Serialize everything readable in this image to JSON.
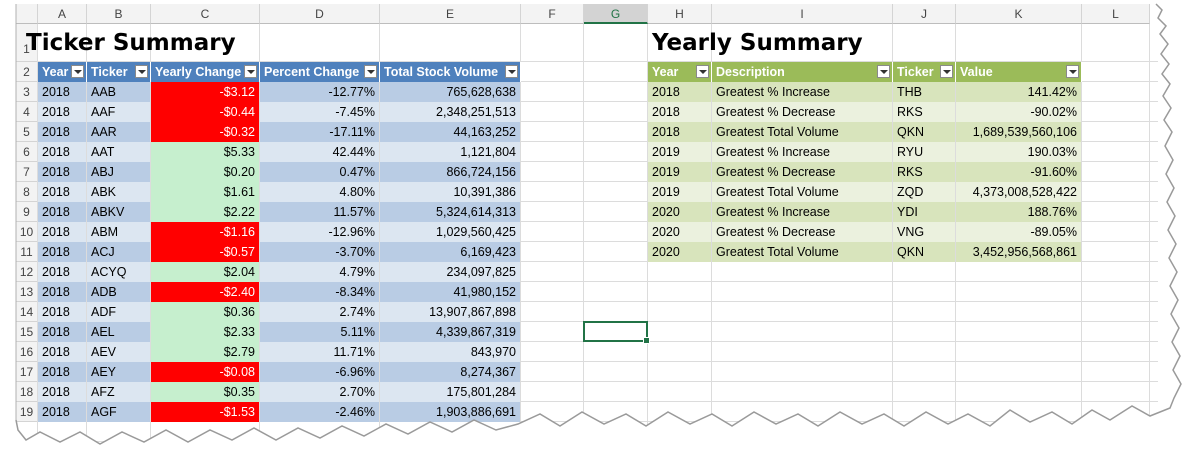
{
  "column_headers": [
    "A",
    "B",
    "C",
    "D",
    "E",
    "F",
    "G",
    "H",
    "I",
    "J",
    "K",
    "L"
  ],
  "row_numbers": [
    "1",
    "2",
    "3",
    "4",
    "5",
    "6",
    "7",
    "8",
    "9",
    "10",
    "11",
    "12",
    "13",
    "14",
    "15",
    "16",
    "17",
    "18",
    "19"
  ],
  "selected_column": "G",
  "ticker_summary": {
    "title": "Ticker Summary",
    "headers": [
      "Year",
      "Ticker",
      "Yearly Change",
      "Percent Change",
      "Total Stock Volume"
    ],
    "rows": [
      [
        "2018",
        "AAB",
        "-$3.12",
        "-12.77%",
        "765,628,638"
      ],
      [
        "2018",
        "AAF",
        "-$0.44",
        "-7.45%",
        "2,348,251,513"
      ],
      [
        "2018",
        "AAR",
        "-$0.32",
        "-17.11%",
        "44,163,252"
      ],
      [
        "2018",
        "AAT",
        "$5.33",
        "42.44%",
        "1,121,804"
      ],
      [
        "2018",
        "ABJ",
        "$0.20",
        "0.47%",
        "866,724,156"
      ],
      [
        "2018",
        "ABK",
        "$1.61",
        "4.80%",
        "10,391,386"
      ],
      [
        "2018",
        "ABKV",
        "$2.22",
        "11.57%",
        "5,324,614,313"
      ],
      [
        "2018",
        "ABM",
        "-$1.16",
        "-12.96%",
        "1,029,560,425"
      ],
      [
        "2018",
        "ACJ",
        "-$0.57",
        "-3.70%",
        "6,169,423"
      ],
      [
        "2018",
        "ACYQ",
        "$2.04",
        "4.79%",
        "234,097,825"
      ],
      [
        "2018",
        "ADB",
        "-$2.40",
        "-8.34%",
        "41,980,152"
      ],
      [
        "2018",
        "ADF",
        "$0.36",
        "2.74%",
        "13,907,867,898"
      ],
      [
        "2018",
        "AEL",
        "$2.33",
        "5.11%",
        "4,339,867,319"
      ],
      [
        "2018",
        "AEV",
        "$2.79",
        "11.71%",
        "843,970"
      ],
      [
        "2018",
        "AEY",
        "-$0.08",
        "-6.96%",
        "8,274,367"
      ],
      [
        "2018",
        "AFZ",
        "$0.35",
        "2.70%",
        "175,801,284"
      ],
      [
        "2018",
        "AGF",
        "-$1.53",
        "-2.46%",
        "1,903,886,691"
      ]
    ]
  },
  "yearly_summary": {
    "title": "Yearly Summary",
    "headers": [
      "Year",
      "Description",
      "Ticker",
      "Value"
    ],
    "rows": [
      [
        "2018",
        "Greatest % Increase",
        "THB",
        "141.42%"
      ],
      [
        "2018",
        "Greatest % Decrease",
        "RKS",
        "-90.02%"
      ],
      [
        "2018",
        "Greatest Total Volume",
        "QKN",
        "1,689,539,560,106"
      ],
      [
        "2019",
        "Greatest % Increase",
        "RYU",
        "190.03%"
      ],
      [
        "2019",
        "Greatest % Decrease",
        "RKS",
        "-91.60%"
      ],
      [
        "2019",
        "Greatest Total Volume",
        "ZQD",
        "4,373,008,528,422"
      ],
      [
        "2020",
        "Greatest % Increase",
        "YDI",
        "188.76%"
      ],
      [
        "2020",
        "Greatest % Decrease",
        "VNG",
        "-89.05%"
      ],
      [
        "2020",
        "Greatest Total Volume",
        "QKN",
        "3,452,956,568,861"
      ]
    ]
  },
  "colors": {
    "negative_fill": "#ff0000",
    "positive_fill": "#c6efce",
    "blue_header": "#4f81bd",
    "green_header": "#9bbb59",
    "selection": "#217346"
  },
  "icons": {
    "filter": "filter-dropdown-icon"
  }
}
